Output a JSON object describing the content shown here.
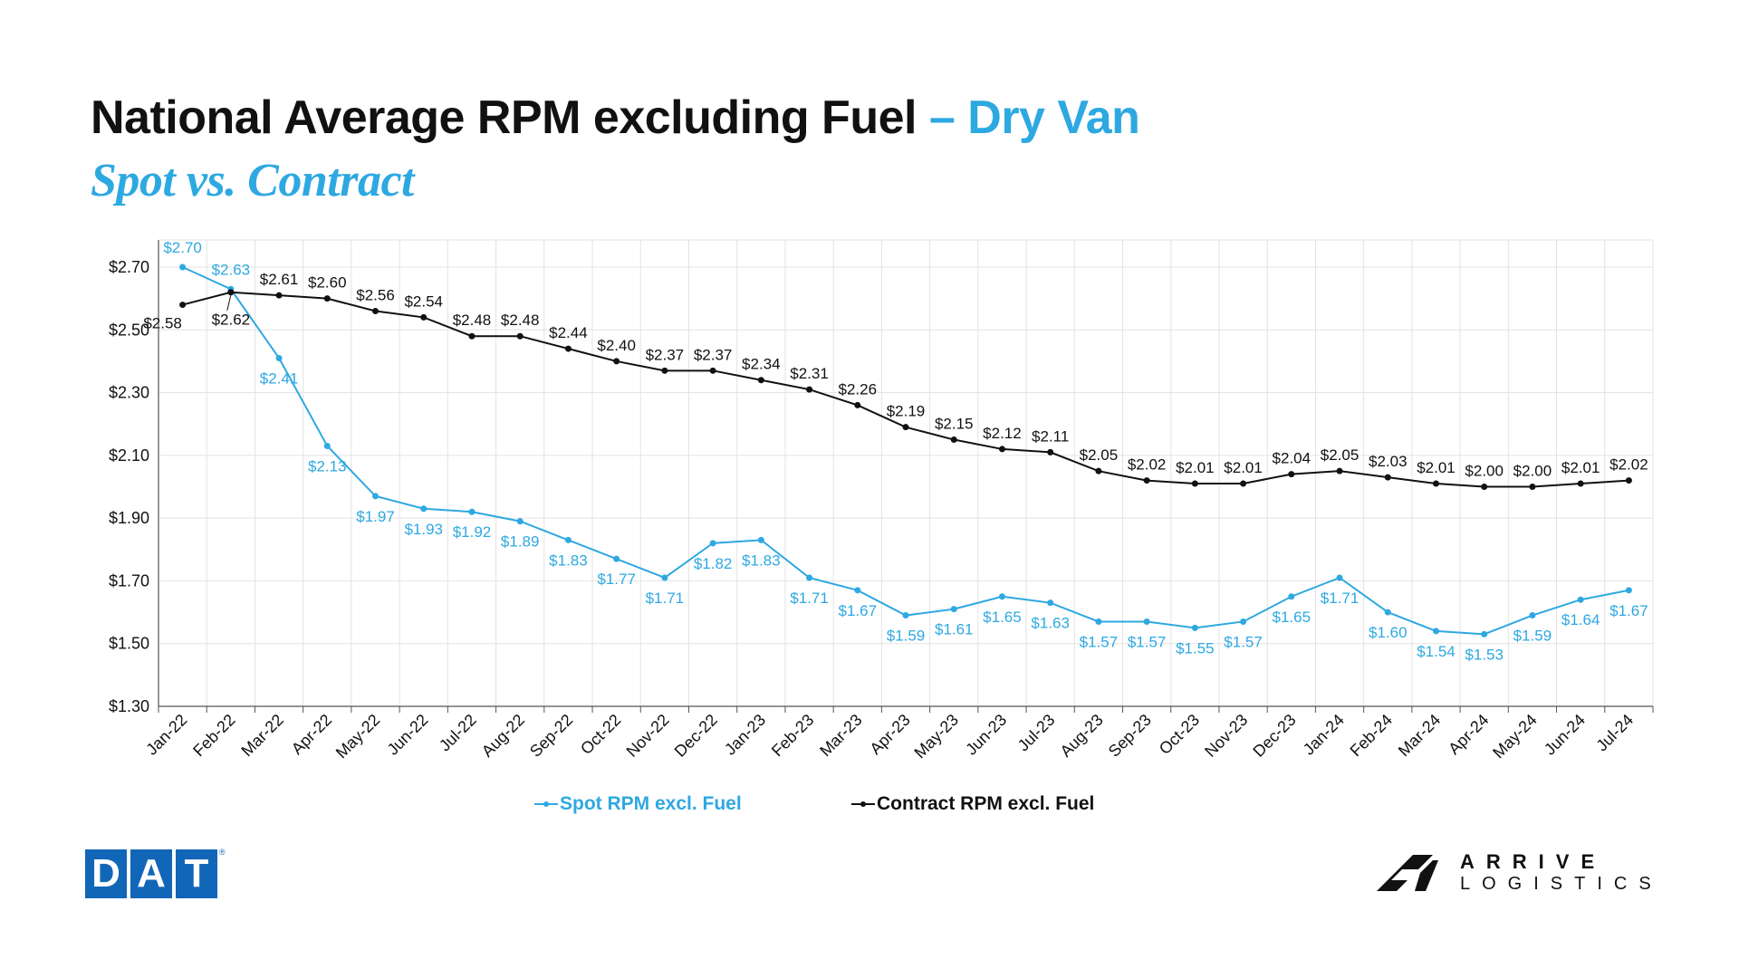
{
  "title": {
    "main": "National Average RPM excluding Fuel",
    "accent": " – Dry Van",
    "subtitle": "Spot vs. Contract"
  },
  "colors": {
    "spot": "#2ea8e1",
    "contract": "#111111",
    "grid": "#e3e3e3",
    "dat_blue": "#1266b8"
  },
  "chart_data": {
    "type": "line",
    "title": "National Average RPM excluding Fuel – Dry Van",
    "subtitle": "Spot vs. Contract",
    "xlabel": "",
    "ylabel": "",
    "ylim": [
      1.3,
      2.7
    ],
    "y_ticks": [
      "$1.30",
      "$1.50",
      "$1.70",
      "$1.90",
      "$2.10",
      "$2.30",
      "$2.50",
      "$2.70"
    ],
    "y_tick_values": [
      1.3,
      1.5,
      1.7,
      1.9,
      2.1,
      2.3,
      2.5,
      2.7
    ],
    "grid": true,
    "legend_position": "bottom",
    "categories": [
      "Jan-22",
      "Feb-22",
      "Mar-22",
      "Apr-22",
      "May-22",
      "Jun-22",
      "Jul-22",
      "Aug-22",
      "Sep-22",
      "Oct-22",
      "Nov-22",
      "Dec-22",
      "Jan-23",
      "Feb-23",
      "Mar-23",
      "Apr-23",
      "May-23",
      "Jun-23",
      "Jul-23",
      "Aug-23",
      "Sep-23",
      "Oct-23",
      "Nov-23",
      "Dec-23",
      "Jan-24",
      "Feb-24",
      "Mar-24",
      "Apr-24",
      "May-24",
      "Jun-24",
      "Jul-24"
    ],
    "series": [
      {
        "name": "Spot RPM excl. Fuel",
        "color": "#2ea8e1",
        "values": [
          2.7,
          2.63,
          2.41,
          2.13,
          1.97,
          1.93,
          1.92,
          1.89,
          1.83,
          1.77,
          1.71,
          1.82,
          1.83,
          1.71,
          1.67,
          1.59,
          1.61,
          1.65,
          1.63,
          1.57,
          1.57,
          1.55,
          1.57,
          1.65,
          1.71,
          1.6,
          1.54,
          1.53,
          1.59,
          1.64,
          1.67
        ],
        "labels": [
          "$2.70",
          "$2.63",
          "$2.41",
          "$2.13",
          "$1.97",
          "$1.93",
          "$1.92",
          "$1.89",
          "$1.83",
          "$1.77",
          "$1.71",
          "$1.82",
          "$1.83",
          "$1.71",
          "$1.67",
          "$1.59",
          "$1.61",
          "$1.65",
          "$1.63",
          "$1.57",
          "$1.57",
          "$1.55",
          "$1.57",
          "$1.65",
          "$1.71",
          "$1.60",
          "$1.54",
          "$1.53",
          "$1.59",
          "$1.64",
          "$1.67"
        ]
      },
      {
        "name": "Contract RPM excl. Fuel",
        "color": "#111111",
        "values": [
          2.58,
          2.62,
          2.61,
          2.6,
          2.56,
          2.54,
          2.48,
          2.48,
          2.44,
          2.4,
          2.37,
          2.37,
          2.34,
          2.31,
          2.26,
          2.19,
          2.15,
          2.12,
          2.11,
          2.05,
          2.02,
          2.01,
          2.01,
          2.04,
          2.05,
          2.03,
          2.01,
          2.0,
          2.0,
          2.01,
          2.02
        ],
        "labels": [
          "$2.58",
          "$2.62",
          "$2.61",
          "$2.60",
          "$2.56",
          "$2.54",
          "$2.48",
          "$2.48",
          "$2.44",
          "$2.40",
          "$2.37",
          "$2.37",
          "$2.34",
          "$2.31",
          "$2.26",
          "$2.19",
          "$2.15",
          "$2.12",
          "$2.11",
          "$2.05",
          "$2.02",
          "$2.01",
          "$2.01",
          "$2.04",
          "$2.05",
          "$2.03",
          "$2.01",
          "$2.00",
          "$2.00",
          "$2.01",
          "$2.02"
        ]
      }
    ]
  },
  "logos": {
    "dat_letters": [
      "D",
      "A",
      "T"
    ],
    "dat_reg": "®",
    "arrive_line1": "ARRIVE",
    "arrive_line2": "LOGISTICS"
  }
}
